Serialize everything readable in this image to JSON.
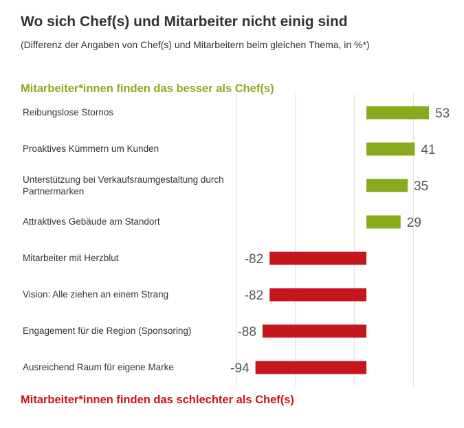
{
  "title": "Wo sich Chef(s) und Mitarbeiter nicht einig sind",
  "subtitle": "(Differenz der Angaben von Chef(s) und Mitarbeitern beim gleichen Thema, in %*)",
  "section_positive": "Mitarbeiter*innen finden das besser als Chef(s)",
  "section_negative": "Mitarbeiter*innen finden das schlechter als Chef(s)",
  "colors": {
    "positive": "#8aaa1e",
    "negative": "#c4161c",
    "section_positive": "#8aaa1e",
    "section_negative": "#c4161c"
  },
  "chart_data": {
    "type": "bar",
    "orientation": "horizontal",
    "categories": [
      "Reibungslose Stornos",
      "Proaktives Kümmern um Kunden",
      "Unterstützung bei Verkaufsraumgestaltung durch Partnermarken",
      "Attraktives Gebäude am Standort",
      "Mitarbeiter mit Herzblut",
      "Vision: Alle ziehen an einem Strang",
      "Engagement für die Region (Sponsoring)",
      "Ausreichend Raum für eigene Marke"
    ],
    "values": [
      53,
      41,
      35,
      29,
      -82,
      -82,
      -88,
      -94
    ],
    "xlim": [
      -110,
      90
    ],
    "gridlines": [
      -110,
      -60,
      -10,
      40
    ],
    "grid": true,
    "data_labels": [
      "53",
      "41",
      "35",
      "29",
      "-82",
      "-82",
      "-88",
      "-94"
    ]
  }
}
